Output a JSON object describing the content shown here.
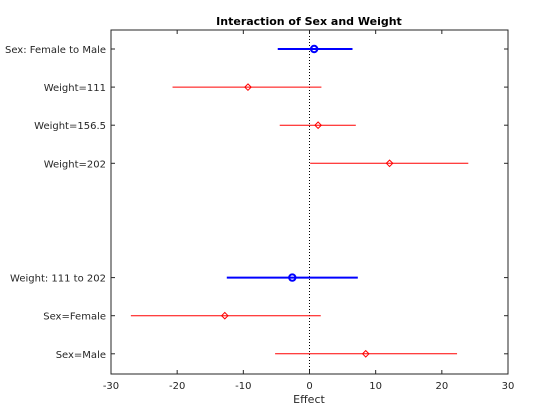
{
  "chart_data": {
    "type": "interaction-effect-plot",
    "title": "Interaction of Sex and Weight",
    "xlabel": "Effect",
    "xlim": [
      -30,
      30
    ],
    "xticks": [
      -30,
      -20,
      -10,
      0,
      10,
      20,
      30
    ],
    "reference_line_x": 0,
    "grid": false,
    "rows": [
      {
        "label": "Sex: Female to Male",
        "group": "main",
        "estimate": 0.7,
        "lower": -4.8,
        "upper": 6.5
      },
      {
        "label": "Weight=111",
        "group": "conditional",
        "estimate": -9.3,
        "lower": -20.7,
        "upper": 1.8
      },
      {
        "label": "Weight=156.5",
        "group": "conditional",
        "estimate": 1.3,
        "lower": -4.5,
        "upper": 7.0
      },
      {
        "label": "Weight=202",
        "group": "conditional",
        "estimate": 12.1,
        "lower": 0.1,
        "upper": 24.0
      },
      {
        "label": "",
        "group": "spacer"
      },
      {
        "label": "",
        "group": "spacer"
      },
      {
        "label": "Weight: 111 to 202",
        "group": "main",
        "estimate": -2.6,
        "lower": -12.5,
        "upper": 7.3
      },
      {
        "label": "Sex=Female",
        "group": "conditional",
        "estimate": -12.8,
        "lower": -27.0,
        "upper": 1.7
      },
      {
        "label": "Sex=Male",
        "group": "conditional",
        "estimate": 8.5,
        "lower": -5.2,
        "upper": 22.3
      }
    ],
    "colors": {
      "main": "#0000ff",
      "conditional": "#ff0000",
      "axis": "#262626",
      "reference": "#000000"
    }
  }
}
